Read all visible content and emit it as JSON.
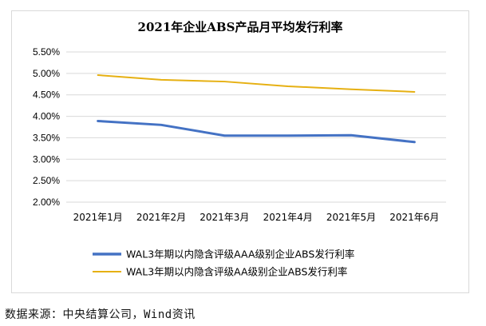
{
  "chart_data": {
    "type": "line",
    "title": "2021年企业ABS产品月平均发行利率",
    "categories": [
      "2021年1月",
      "2021年2月",
      "2021年3月",
      "2021年4月",
      "2021年5月",
      "2021年6月"
    ],
    "series": [
      {
        "name": "WAL3年期以内隐含评级AAA级别企业ABS发行利率",
        "color": "#4472c4",
        "values": [
          3.89,
          3.8,
          3.55,
          3.55,
          3.56,
          3.4
        ]
      },
      {
        "name": "WAL3年期以内隐含评级AA级别企业ABS发行利率",
        "color": "#e6b012",
        "values": [
          4.96,
          4.85,
          4.81,
          4.7,
          4.63,
          4.57
        ]
      }
    ],
    "ylim": [
      2.0,
      5.5
    ],
    "yticks": [
      2.0,
      2.5,
      3.0,
      3.5,
      4.0,
      4.5,
      5.0,
      5.5
    ],
    "ytick_labels": [
      "2.00%",
      "2.50%",
      "3.00%",
      "3.50%",
      "4.00%",
      "4.50%",
      "5.00%",
      "5.50%"
    ],
    "grid": true,
    "legend_position": "bottom"
  },
  "source_note": "数据来源：中央结算公司，Wind资讯",
  "colors": {
    "gridline": "#d9d9d9",
    "axis_text": "#000000"
  }
}
